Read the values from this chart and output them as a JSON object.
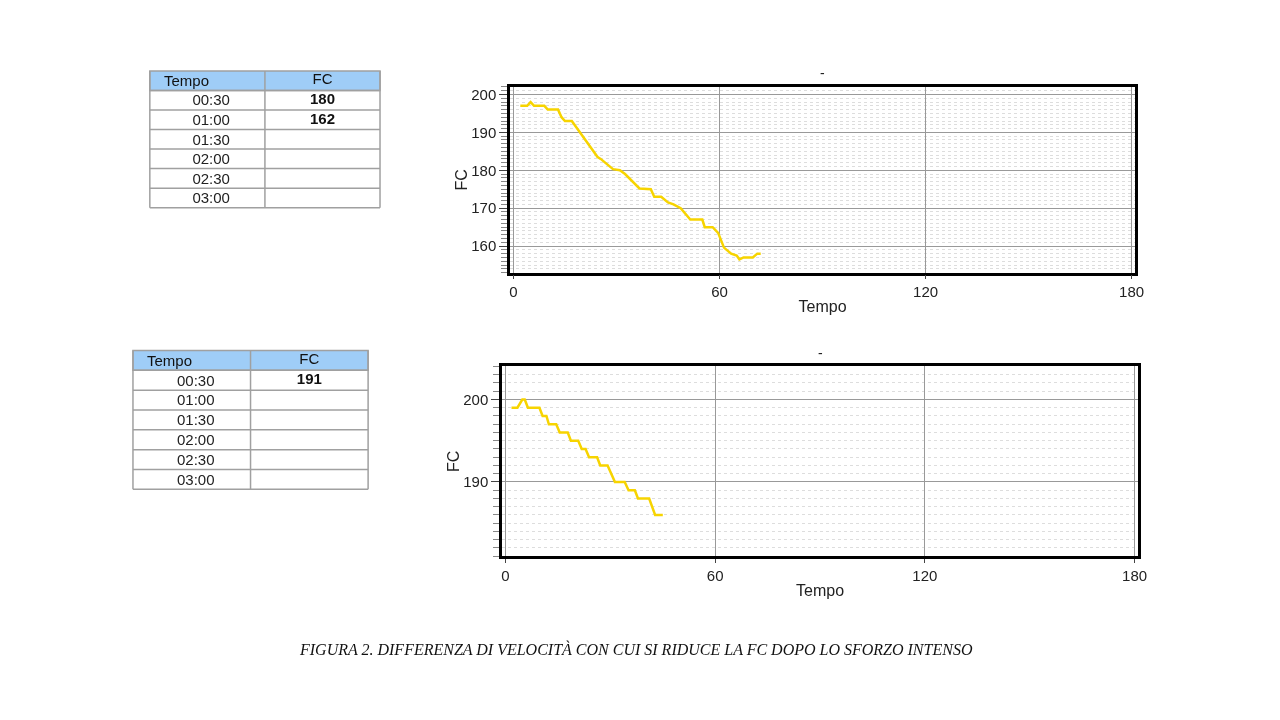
{
  "chart_data": [
    {
      "type": "heatmap",
      "ylabel": "Tempo",
      "categories": [
        "FC"
      ],
      "y_categories": [
        "00:30",
        "01:00",
        "01:30",
        "02:00",
        "02:30",
        "03:00"
      ],
      "cells": [
        [
          180
        ],
        [
          162
        ],
        [
          null
        ],
        [
          null
        ],
        [
          null
        ],
        [
          null
        ]
      ],
      "data_labels": true
    },
    {
      "type": "line",
      "title": "-",
      "xlabel": "Tempo",
      "ylabel": "FC",
      "xlim": [
        -1,
        181
      ],
      "xticks": [
        0,
        60,
        120,
        180
      ],
      "ylim": [
        153,
        202
      ],
      "yticks": [
        160,
        170,
        180,
        190,
        200
      ],
      "grid": true,
      "line_style": "solid",
      "series": [
        {
          "color": "#f7d400",
          "x": [
            2,
            4,
            5,
            6,
            9,
            10,
            13,
            14,
            15,
            17,
            24.5,
            25.4,
            29,
            31,
            32.5,
            36.7,
            40,
            41,
            43,
            45,
            46.6,
            48.7,
            51.5,
            55,
            55.7,
            58,
            59.6,
            61.3,
            63.4,
            65,
            65.8,
            67,
            69.7,
            71,
            72
          ],
          "values": [
            197,
            197,
            198,
            197,
            197,
            196,
            196,
            194,
            193,
            193,
            183.5,
            183,
            180.3,
            180,
            179,
            175.2,
            175,
            173,
            173,
            171.5,
            171,
            170,
            167,
            167,
            165,
            165,
            163.5,
            159.6,
            158,
            157.5,
            156.5,
            157,
            157,
            158,
            158
          ]
        }
      ]
    },
    {
      "type": "heatmap",
      "ylabel": "Tempo",
      "categories": [
        "FC"
      ],
      "y_categories": [
        "00:30",
        "01:00",
        "01:30",
        "02:00",
        "02:30",
        "03:00"
      ],
      "cells": [
        [
          191
        ],
        [
          null
        ],
        [
          null
        ],
        [
          null
        ],
        [
          null
        ],
        [
          null
        ]
      ],
      "data_labels": true
    },
    {
      "type": "line",
      "title": "-",
      "xlabel": "Tempo",
      "ylabel": "FC",
      "xlim": [
        -1,
        181
      ],
      "xticks": [
        0,
        60,
        120,
        180
      ],
      "ylim": [
        181,
        204
      ],
      "yticks": [
        190,
        200
      ],
      "grid": true,
      "line_style": "solid",
      "annotations": [
        "FIGURA 2. DIFFERENZA DI VELOCITÀ CON CUI SI RIDUCE LA FC DOPO LO SFORZO INTENSO"
      ],
      "series": [
        {
          "color": "#f7d400",
          "x": [
            1.7,
            3.4,
            4.8,
            5.5,
            6.4,
            9.7,
            10.6,
            11.7,
            12.4,
            14.5,
            15.5,
            17.8,
            18.7,
            20.8,
            21.8,
            22.9,
            23.9,
            26.2,
            27.1,
            29.2,
            31.3,
            34.1,
            35.2,
            37,
            37.9,
            41.1,
            42.8,
            45
          ],
          "values": [
            199,
            199,
            200,
            200,
            199,
            199,
            198,
            198,
            197,
            197,
            196,
            196,
            195,
            195,
            194,
            194,
            193,
            193,
            192,
            192,
            190,
            190,
            189,
            189,
            188,
            188,
            186,
            186
          ]
        }
      ]
    }
  ]
}
